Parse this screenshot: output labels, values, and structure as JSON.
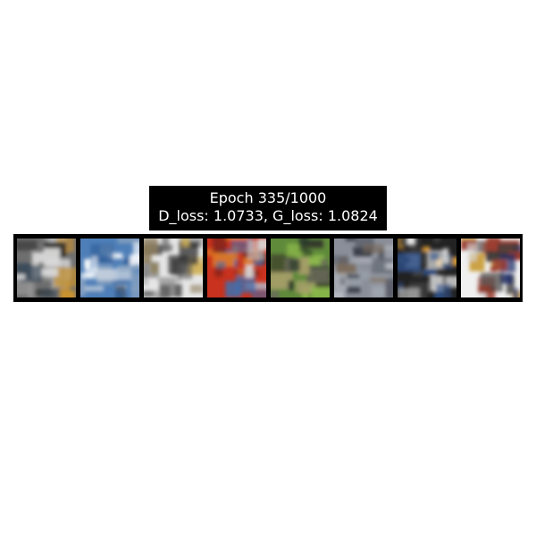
{
  "figure": {
    "title_line1": "Epoch 335/1000",
    "title_line2": "D_loss: 1.0733, G_loss: 1.0824"
  },
  "samples": [
    {
      "palette": [
        "#6f6f6f",
        "#2b2b2b",
        "#d9d9d9",
        "#c7922f",
        "#3a4a5a",
        "#9a9a9a"
      ]
    },
    {
      "palette": [
        "#4f7fb8",
        "#2f5f9a",
        "#c9d3df",
        "#8aa3c0",
        "#ffffff",
        "#44556a"
      ]
    },
    {
      "palette": [
        "#e6e6e6",
        "#5a5a5a",
        "#d1b25a",
        "#8a7a5a",
        "#2d2d2d",
        "#b0b0b0"
      ]
    },
    {
      "palette": [
        "#c8321e",
        "#e07a22",
        "#2e2e3a",
        "#d9d9d9",
        "#7a1f17",
        "#3f6fae"
      ]
    },
    {
      "palette": [
        "#5f8a3a",
        "#8dbb4a",
        "#3a3a2a",
        "#a8a06a",
        "#6a6a5a",
        "#2a3a2a"
      ]
    },
    {
      "palette": [
        "#8a8f99",
        "#5a5f6a",
        "#b8bcc4",
        "#7a6a5a",
        "#3a3f4a",
        "#9aa0aa"
      ]
    },
    {
      "palette": [
        "#222222",
        "#d9d9d9",
        "#e0a030",
        "#3f3f3f",
        "#ffffff",
        "#2a4f8a"
      ]
    },
    {
      "palette": [
        "#f0f0f0",
        "#1f2f6a",
        "#c89a30",
        "#3a3a3a",
        "#9a3a2a",
        "#d9d9d9"
      ]
    }
  ]
}
